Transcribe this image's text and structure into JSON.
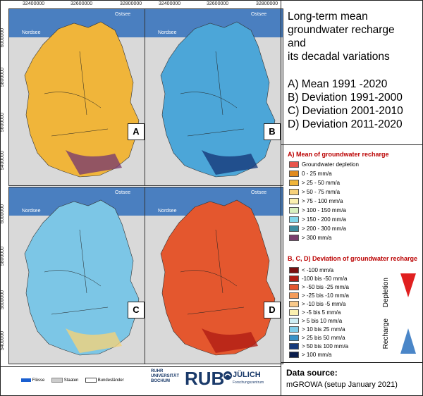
{
  "coords": {
    "x_ticks": [
      "32400000",
      "32600000",
      "32800000"
    ],
    "y_ticks_top": [
      "6000000",
      "5800000",
      "5600000",
      "5400000"
    ],
    "y_ticks_bottom": [
      "6000000",
      "5800000",
      "5600000",
      "5400000"
    ]
  },
  "seas": {
    "north": "Nordsee",
    "baltic": "Ostsee"
  },
  "panels": [
    {
      "letter": "A",
      "fill": "#f0b53a",
      "accent": "#7a3d6e"
    },
    {
      "letter": "B",
      "fill": "#4ca6d8",
      "accent": "#173a7a"
    },
    {
      "letter": "C",
      "fill": "#7cc6e6",
      "accent": "#f3d27a"
    },
    {
      "letter": "D",
      "fill": "#e4572e",
      "accent": "#b01d14"
    }
  ],
  "title_lines": [
    "Long-term mean",
    "groundwater recharge",
    "and",
    "its decadal variations"
  ],
  "items": [
    "A) Mean 1991 -2020",
    "B) Deviation 1991-2000",
    "C) Deviation 2001-2010",
    "D) Deviation 2011-2020"
  ],
  "legend_a": {
    "title": "A) Mean of groundwater recharge",
    "rows": [
      {
        "label": "Groundwater depletion",
        "color": "#e8554b"
      },
      {
        "label": "0 - 25 mm/a",
        "color": "#e08a1e"
      },
      {
        "label": "> 25 - 50 mm/a",
        "color": "#f0b53a"
      },
      {
        "label": "> 50 - 75 mm/a",
        "color": "#f7d17a"
      },
      {
        "label": "> 75 - 100 mm/a",
        "color": "#fbf0b0"
      },
      {
        "label": "> 100 - 150 mm/a",
        "color": "#d8f0c0"
      },
      {
        "label": "> 150 - 200 mm/a",
        "color": "#7fd6ea"
      },
      {
        "label": "> 200 - 300 mm/a",
        "color": "#3c8ca0"
      },
      {
        "label": "> 300 mm/a",
        "color": "#7a3d6e"
      }
    ]
  },
  "legend_bcd": {
    "title": "B, C, D) Deviation of groundwater recharge",
    "rows": [
      {
        "label": "< -100 mm/a",
        "color": "#7a1010"
      },
      {
        "label": "-100 bis -50 mm/a",
        "color": "#b01d14"
      },
      {
        "label": "> -50 bis -25 mm/a",
        "color": "#e4572e"
      },
      {
        "label": "> -25 bis -10 mm/a",
        "color": "#f39b5a"
      },
      {
        "label": "> -10 bis -5 mm/a",
        "color": "#f9c98a"
      },
      {
        "label": "> -5 bis 5 mm/a",
        "color": "#fbf0b0"
      },
      {
        "label": "> 5 bis 10 mm/a",
        "color": "#cfeef5"
      },
      {
        "label": "> 10 bis 25 mm/a",
        "color": "#7fcdea"
      },
      {
        "label": "> 25 bis 50 mm/a",
        "color": "#3a92c8"
      },
      {
        "label": "> 50 bis 100 mm/a",
        "color": "#173a7a"
      },
      {
        "label": "> 100 mm/a",
        "color": "#0c1f4e"
      }
    ],
    "depletion": "Depletion",
    "recharge": "Recharge"
  },
  "source": {
    "label": "Data source:",
    "value": "mGROWA (setup January 2021)"
  },
  "bottom_legend": {
    "rivers": "Flüsse",
    "states": "Staaten",
    "borders": "Bundesländer"
  },
  "logos": {
    "ruhr": "RUHR UNIVERSITÄT BOCHUM",
    "rub": "RUB",
    "juelich": "JÜLICH",
    "juelich_sub": "Forschungszentrum"
  }
}
